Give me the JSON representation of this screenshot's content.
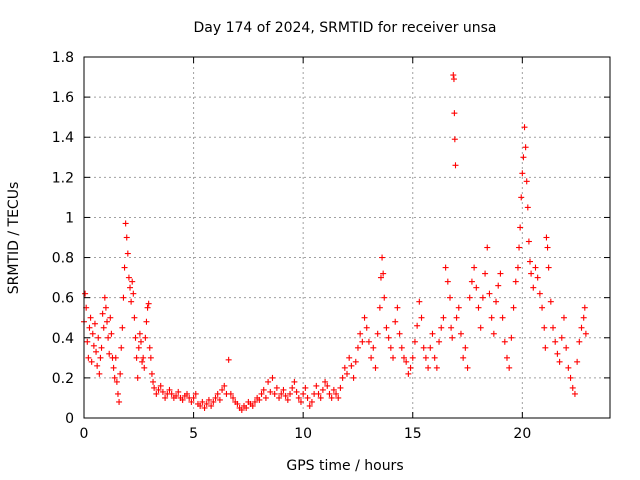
{
  "chart_data": {
    "type": "scatter",
    "title": "Day 174 of 2024, SRMTID for receiver unsa",
    "xlabel": "GPS time / hours",
    "ylabel": "SRMTID / TECUs",
    "xlim": [
      0,
      24
    ],
    "ylim": [
      0,
      1.8
    ],
    "xticks": [
      0,
      5,
      10,
      15,
      20
    ],
    "xtick_labels": [
      "0",
      "5",
      "10",
      "15",
      "20"
    ],
    "yticks": [
      0,
      0.2,
      0.4,
      0.6,
      0.8,
      1.0,
      1.2,
      1.4,
      1.6,
      1.8
    ],
    "ytick_labels": [
      "0",
      "0.2",
      "0.4",
      "0.6",
      "0.8",
      "1",
      "1.2",
      "1.4",
      "1.6",
      "1.8"
    ],
    "grid": true,
    "marker": "+",
    "color": "#ff0000",
    "series": [
      {
        "name": "SRMTID",
        "points": [
          [
            0.0,
            0.48
          ],
          [
            0.05,
            0.62
          ],
          [
            0.1,
            0.55
          ],
          [
            0.15,
            0.38
          ],
          [
            0.2,
            0.3
          ],
          [
            0.25,
            0.45
          ],
          [
            0.3,
            0.5
          ],
          [
            0.35,
            0.28
          ],
          [
            0.4,
            0.42
          ],
          [
            0.45,
            0.36
          ],
          [
            0.5,
            0.47
          ],
          [
            0.55,
            0.33
          ],
          [
            0.6,
            0.26
          ],
          [
            0.65,
            0.4
          ],
          [
            0.7,
            0.22
          ],
          [
            0.75,
            0.3
          ],
          [
            0.8,
            0.35
          ],
          [
            0.85,
            0.52
          ],
          [
            0.9,
            0.45
          ],
          [
            0.95,
            0.6
          ],
          [
            1.0,
            0.55
          ],
          [
            1.05,
            0.48
          ],
          [
            1.1,
            0.4
          ],
          [
            1.15,
            0.32
          ],
          [
            1.2,
            0.5
          ],
          [
            1.25,
            0.42
          ],
          [
            1.3,
            0.3
          ],
          [
            1.35,
            0.25
          ],
          [
            1.4,
            0.2
          ],
          [
            1.45,
            0.3
          ],
          [
            1.5,
            0.18
          ],
          [
            1.55,
            0.12
          ],
          [
            1.6,
            0.08
          ],
          [
            1.65,
            0.22
          ],
          [
            1.7,
            0.35
          ],
          [
            1.75,
            0.45
          ],
          [
            1.8,
            0.6
          ],
          [
            1.85,
            0.75
          ],
          [
            1.9,
            0.97
          ],
          [
            1.95,
            0.9
          ],
          [
            2.0,
            0.82
          ],
          [
            2.05,
            0.7
          ],
          [
            2.1,
            0.65
          ],
          [
            2.15,
            0.58
          ],
          [
            2.2,
            0.68
          ],
          [
            2.25,
            0.62
          ],
          [
            2.3,
            0.5
          ],
          [
            2.35,
            0.4
          ],
          [
            2.4,
            0.3
          ],
          [
            2.45,
            0.2
          ],
          [
            2.5,
            0.35
          ],
          [
            2.55,
            0.42
          ],
          [
            2.6,
            0.38
          ],
          [
            2.65,
            0.28
          ],
          [
            2.7,
            0.3
          ],
          [
            2.75,
            0.25
          ],
          [
            2.8,
            0.4
          ],
          [
            2.85,
            0.48
          ],
          [
            2.9,
            0.55
          ],
          [
            2.95,
            0.57
          ],
          [
            3.0,
            0.35
          ],
          [
            3.05,
            0.3
          ],
          [
            3.1,
            0.22
          ],
          [
            3.15,
            0.18
          ],
          [
            3.2,
            0.15
          ],
          [
            3.3,
            0.12
          ],
          [
            3.4,
            0.14
          ],
          [
            3.5,
            0.16
          ],
          [
            3.6,
            0.13
          ],
          [
            3.7,
            0.1
          ],
          [
            3.8,
            0.12
          ],
          [
            3.9,
            0.14
          ],
          [
            4.0,
            0.12
          ],
          [
            4.1,
            0.1
          ],
          [
            4.2,
            0.11
          ],
          [
            4.3,
            0.13
          ],
          [
            4.4,
            0.1
          ],
          [
            4.5,
            0.09
          ],
          [
            4.6,
            0.11
          ],
          [
            4.7,
            0.12
          ],
          [
            4.8,
            0.1
          ],
          [
            4.9,
            0.08
          ],
          [
            5.0,
            0.1
          ],
          [
            5.1,
            0.12
          ],
          [
            5.2,
            0.07
          ],
          [
            5.3,
            0.06
          ],
          [
            5.4,
            0.08
          ],
          [
            5.5,
            0.05
          ],
          [
            5.6,
            0.07
          ],
          [
            5.7,
            0.09
          ],
          [
            5.8,
            0.06
          ],
          [
            5.9,
            0.08
          ],
          [
            6.0,
            0.1
          ],
          [
            6.1,
            0.12
          ],
          [
            6.2,
            0.09
          ],
          [
            6.3,
            0.14
          ],
          [
            6.4,
            0.16
          ],
          [
            6.5,
            0.12
          ],
          [
            6.6,
            0.29
          ],
          [
            6.7,
            0.12
          ],
          [
            6.8,
            0.1
          ],
          [
            6.9,
            0.08
          ],
          [
            7.0,
            0.07
          ],
          [
            7.1,
            0.05
          ],
          [
            7.2,
            0.04
          ],
          [
            7.3,
            0.06
          ],
          [
            7.4,
            0.05
          ],
          [
            7.5,
            0.08
          ],
          [
            7.6,
            0.07
          ],
          [
            7.7,
            0.06
          ],
          [
            7.8,
            0.08
          ],
          [
            7.9,
            0.1
          ],
          [
            8.0,
            0.09
          ],
          [
            8.1,
            0.12
          ],
          [
            8.2,
            0.14
          ],
          [
            8.3,
            0.1
          ],
          [
            8.4,
            0.18
          ],
          [
            8.5,
            0.13
          ],
          [
            8.6,
            0.2
          ],
          [
            8.7,
            0.12
          ],
          [
            8.8,
            0.15
          ],
          [
            8.9,
            0.1
          ],
          [
            9.0,
            0.12
          ],
          [
            9.1,
            0.14
          ],
          [
            9.2,
            0.11
          ],
          [
            9.3,
            0.09
          ],
          [
            9.4,
            0.12
          ],
          [
            9.5,
            0.15
          ],
          [
            9.6,
            0.18
          ],
          [
            9.7,
            0.13
          ],
          [
            9.8,
            0.1
          ],
          [
            9.9,
            0.08
          ],
          [
            10.0,
            0.12
          ],
          [
            10.1,
            0.15
          ],
          [
            10.2,
            0.1
          ],
          [
            10.3,
            0.06
          ],
          [
            10.4,
            0.08
          ],
          [
            10.5,
            0.12
          ],
          [
            10.6,
            0.16
          ],
          [
            10.7,
            0.12
          ],
          [
            10.8,
            0.1
          ],
          [
            10.9,
            0.14
          ],
          [
            11.0,
            0.18
          ],
          [
            11.1,
            0.16
          ],
          [
            11.2,
            0.12
          ],
          [
            11.3,
            0.1
          ],
          [
            11.4,
            0.14
          ],
          [
            11.5,
            0.12
          ],
          [
            11.6,
            0.1
          ],
          [
            11.7,
            0.15
          ],
          [
            11.8,
            0.2
          ],
          [
            11.9,
            0.25
          ],
          [
            12.0,
            0.22
          ],
          [
            12.1,
            0.3
          ],
          [
            12.2,
            0.26
          ],
          [
            12.3,
            0.2
          ],
          [
            12.4,
            0.28
          ],
          [
            12.5,
            0.35
          ],
          [
            12.6,
            0.42
          ],
          [
            12.7,
            0.38
          ],
          [
            12.8,
            0.5
          ],
          [
            12.9,
            0.45
          ],
          [
            13.0,
            0.38
          ],
          [
            13.1,
            0.3
          ],
          [
            13.2,
            0.35
          ],
          [
            13.3,
            0.25
          ],
          [
            13.4,
            0.42
          ],
          [
            13.5,
            0.55
          ],
          [
            13.55,
            0.7
          ],
          [
            13.6,
            0.8
          ],
          [
            13.65,
            0.72
          ],
          [
            13.7,
            0.6
          ],
          [
            13.8,
            0.45
          ],
          [
            13.9,
            0.4
          ],
          [
            14.0,
            0.35
          ],
          [
            14.1,
            0.3
          ],
          [
            14.2,
            0.48
          ],
          [
            14.3,
            0.55
          ],
          [
            14.4,
            0.42
          ],
          [
            14.5,
            0.35
          ],
          [
            14.6,
            0.3
          ],
          [
            14.7,
            0.28
          ],
          [
            14.8,
            0.22
          ],
          [
            14.9,
            0.25
          ],
          [
            15.0,
            0.3
          ],
          [
            15.1,
            0.38
          ],
          [
            15.2,
            0.46
          ],
          [
            15.3,
            0.58
          ],
          [
            15.4,
            0.5
          ],
          [
            15.5,
            0.35
          ],
          [
            15.6,
            0.3
          ],
          [
            15.7,
            0.25
          ],
          [
            15.8,
            0.35
          ],
          [
            15.9,
            0.42
          ],
          [
            16.0,
            0.3
          ],
          [
            16.1,
            0.25
          ],
          [
            16.2,
            0.38
          ],
          [
            16.3,
            0.45
          ],
          [
            16.4,
            0.5
          ],
          [
            16.5,
            0.75
          ],
          [
            16.6,
            0.68
          ],
          [
            16.7,
            0.6
          ],
          [
            16.75,
            0.45
          ],
          [
            16.8,
            0.4
          ],
          [
            16.85,
            1.71
          ],
          [
            16.88,
            1.69
          ],
          [
            16.9,
            1.52
          ],
          [
            16.92,
            1.39
          ],
          [
            16.95,
            1.26
          ],
          [
            17.0,
            0.5
          ],
          [
            17.1,
            0.55
          ],
          [
            17.2,
            0.42
          ],
          [
            17.3,
            0.3
          ],
          [
            17.4,
            0.35
          ],
          [
            17.5,
            0.25
          ],
          [
            17.6,
            0.6
          ],
          [
            17.7,
            0.68
          ],
          [
            17.8,
            0.75
          ],
          [
            17.9,
            0.65
          ],
          [
            18.0,
            0.55
          ],
          [
            18.1,
            0.45
          ],
          [
            18.2,
            0.6
          ],
          [
            18.3,
            0.72
          ],
          [
            18.4,
            0.85
          ],
          [
            18.5,
            0.62
          ],
          [
            18.6,
            0.5
          ],
          [
            18.7,
            0.42
          ],
          [
            18.8,
            0.58
          ],
          [
            18.9,
            0.66
          ],
          [
            19.0,
            0.72
          ],
          [
            19.1,
            0.5
          ],
          [
            19.2,
            0.38
          ],
          [
            19.3,
            0.3
          ],
          [
            19.4,
            0.25
          ],
          [
            19.5,
            0.4
          ],
          [
            19.6,
            0.55
          ],
          [
            19.7,
            0.68
          ],
          [
            19.8,
            0.75
          ],
          [
            19.85,
            0.85
          ],
          [
            19.9,
            0.95
          ],
          [
            19.95,
            1.1
          ],
          [
            20.0,
            1.22
          ],
          [
            20.05,
            1.3
          ],
          [
            20.1,
            1.45
          ],
          [
            20.15,
            1.35
          ],
          [
            20.2,
            1.18
          ],
          [
            20.25,
            1.05
          ],
          [
            20.3,
            0.88
          ],
          [
            20.35,
            0.78
          ],
          [
            20.4,
            0.72
          ],
          [
            20.5,
            0.65
          ],
          [
            20.6,
            0.75
          ],
          [
            20.7,
            0.7
          ],
          [
            20.8,
            0.62
          ],
          [
            20.9,
            0.55
          ],
          [
            21.0,
            0.45
          ],
          [
            21.05,
            0.35
          ],
          [
            21.1,
            0.9
          ],
          [
            21.15,
            0.85
          ],
          [
            21.2,
            0.75
          ],
          [
            21.3,
            0.58
          ],
          [
            21.4,
            0.45
          ],
          [
            21.5,
            0.38
          ],
          [
            21.6,
            0.32
          ],
          [
            21.7,
            0.28
          ],
          [
            21.8,
            0.4
          ],
          [
            21.9,
            0.5
          ],
          [
            22.0,
            0.35
          ],
          [
            22.1,
            0.25
          ],
          [
            22.2,
            0.2
          ],
          [
            22.3,
            0.15
          ],
          [
            22.4,
            0.12
          ],
          [
            22.5,
            0.28
          ],
          [
            22.6,
            0.38
          ],
          [
            22.7,
            0.45
          ],
          [
            22.8,
            0.5
          ],
          [
            22.85,
            0.55
          ],
          [
            22.9,
            0.42
          ]
        ]
      }
    ]
  }
}
